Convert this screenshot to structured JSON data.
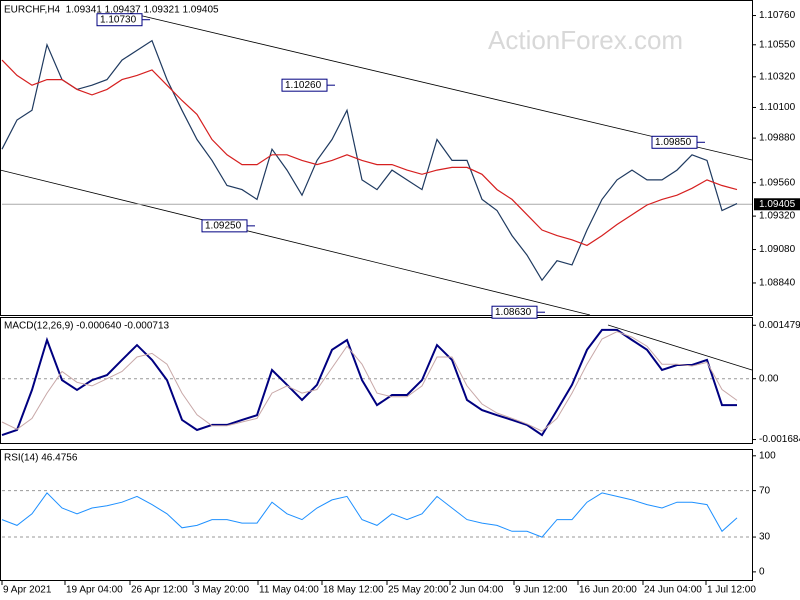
{
  "chart_data": [
    {
      "type": "line",
      "title": "EURCHF,H4  1.09341 1.09437 1.09321 1.09405",
      "watermark": "ActionForex.com",
      "x": [
        0,
        1.5,
        3,
        4.5,
        6,
        7.5,
        9,
        10.5,
        12,
        13.5,
        15,
        16.5,
        18,
        19.5,
        21,
        22.5,
        24,
        25.5,
        27,
        28.5,
        30,
        31.5,
        33,
        34.5,
        36,
        37.5,
        39,
        40.5,
        42,
        43.5,
        45,
        46.5,
        48,
        49.5,
        51,
        52.5,
        54,
        55.5,
        57,
        58.5,
        60,
        61.5,
        63,
        64.5,
        66,
        67.5,
        69,
        70.5,
        72,
        73.5
      ],
      "xlim": [
        0,
        75
      ],
      "ylim": [
        1.0861,
        1.1085
      ],
      "yticks": [
        {
          "value": 1.1076,
          "label": "1.10760"
        },
        {
          "value": 1.1055,
          "label": "1.10550"
        },
        {
          "value": 1.1032,
          "label": "1.10320"
        },
        {
          "value": 1.101,
          "label": "1.10100"
        },
        {
          "value": 1.0988,
          "label": "1.09880"
        },
        {
          "value": 1.0956,
          "label": "1.09560"
        },
        {
          "value": 1.0932,
          "label": "1.09320"
        },
        {
          "value": 1.0908,
          "label": "1.09080"
        },
        {
          "value": 1.0884,
          "label": "1.08840"
        }
      ],
      "last_price": {
        "value": 1.09405,
        "label": "1.09405"
      },
      "annotations": [
        {
          "x": 14.8,
          "value": 1.1073,
          "label": "1.10730"
        },
        {
          "x": 33.3,
          "value": 1.1026,
          "label": "1.10260"
        },
        {
          "x": 25.3,
          "value": 1.0925,
          "label": "1.09250"
        },
        {
          "x": 54.3,
          "value": 1.0863,
          "label": "1.08630"
        },
        {
          "x": 70.3,
          "value": 1.0985,
          "label": "1.09850"
        }
      ],
      "series": [
        {
          "color": "#1f3a60",
          "values": [
            1.098,
            1.1001,
            1.1008,
            1.1055,
            1.103,
            1.1023,
            1.1026,
            1.103,
            1.1044,
            1.1051,
            1.1058,
            1.103,
            1.1008,
            1.0987,
            1.0972,
            1.0954,
            1.0951,
            1.0944,
            1.098,
            1.0965,
            1.0947,
            1.0972,
            1.0987,
            1.1008,
            1.0958,
            1.0951,
            1.0965,
            1.0958,
            1.0951,
            1.0987,
            1.0972,
            1.0972,
            1.0944,
            1.0936,
            1.0918,
            1.0904,
            1.0886,
            1.09,
            1.0897,
            1.0922,
            1.0944,
            1.0958,
            1.0965,
            1.0958,
            1.0958,
            1.0965,
            1.0976,
            1.0972,
            1.0936,
            1.0941
          ]
        },
        {
          "color": "#d62020",
          "values": [
            1.1044,
            1.1033,
            1.1026,
            1.103,
            1.103,
            1.1023,
            1.1019,
            1.1023,
            1.103,
            1.1033,
            1.1037,
            1.1026,
            1.1015,
            1.1005,
            1.0987,
            1.0976,
            1.0969,
            1.0969,
            1.0976,
            1.0976,
            1.0972,
            1.0969,
            1.0972,
            1.0976,
            1.0972,
            1.0969,
            1.0969,
            1.0965,
            1.0962,
            1.0965,
            1.0967,
            1.0967,
            1.0962,
            1.0951,
            1.0944,
            1.0933,
            1.0922,
            1.0918,
            1.0915,
            1.0911,
            1.0918,
            1.0926,
            1.0933,
            1.094,
            1.0944,
            1.0947,
            1.0952,
            1.0958,
            1.0954,
            1.0951
          ]
        }
      ]
    },
    {
      "type": "line",
      "title": "MACD(12,26,9) -0.000640 -0.000713",
      "ylim": [
        -0.00178,
        0.00168
      ],
      "yticks": [
        {
          "value": 0.001479,
          "label": "0.001479"
        },
        {
          "value": 0,
          "label": "0.00"
        },
        {
          "value": -0.001684,
          "label": "-0.001684"
        }
      ],
      "dashed_levels": [
        0
      ],
      "series": [
        {
          "color": "#000080",
          "width": 2,
          "values": [
            -0.00156,
            -0.00142,
            -0.00031,
            0.00107,
            -4e-05,
            -0.00031,
            -4e-05,
            0.0001,
            0.00052,
            0.00093,
            0.00052,
            -4e-05,
            -0.00114,
            -0.00142,
            -0.00128,
            -0.00128,
            -0.00114,
            -0.00101,
            0.00024,
            -0.00017,
            -0.00059,
            -0.00017,
            0.0008,
            0.00107,
            -4e-05,
            -0.00073,
            -0.00045,
            -0.00045,
            -4e-05,
            0.00093,
            0.00052,
            -0.00059,
            -0.00087,
            -0.00101,
            -0.00114,
            -0.00128,
            -0.00156,
            -0.00087,
            -0.00017,
            0.0008,
            0.00135,
            0.00135,
            0.00107,
            0.0008,
            0.00024,
            0.00038,
            0.00038,
            0.00052,
            -0.00073,
            -0.00073
          ]
        },
        {
          "color": "#c8a8a8",
          "width": 1,
          "values": [
            -0.0012,
            -0.0014,
            -0.0011,
            -0.0004,
            0.0002,
            -0.0001,
            -0.0002,
            0.0,
            0.0002,
            0.0006,
            0.0007,
            0.0004,
            -0.0004,
            -0.001,
            -0.0013,
            -0.0013,
            -0.0012,
            -0.0011,
            -0.0004,
            -0.0002,
            -0.0004,
            -0.0003,
            0.0003,
            0.0009,
            0.0004,
            -0.0004,
            -0.0005,
            -0.0005,
            -0.0002,
            0.0006,
            0.0006,
            -0.0002,
            -0.0007,
            -0.00095,
            -0.0011,
            -0.00125,
            -0.00145,
            -0.0011,
            -0.0004,
            0.0004,
            0.0011,
            0.0013,
            0.00115,
            0.0009,
            0.0004,
            0.0004,
            0.00035,
            0.00045,
            -0.0003,
            -0.0006
          ]
        }
      ]
    },
    {
      "type": "line",
      "title": "RSI(14) 46.4756",
      "ylim": [
        -7,
        105
      ],
      "yticks": [
        100,
        70,
        30,
        0
      ],
      "dashed_levels": [
        70,
        30
      ],
      "xticks": [
        {
          "value": 0,
          "label": "9 Apr 2021"
        },
        {
          "value": 6.3,
          "label": "19 Apr 04:00"
        },
        {
          "value": 12.8,
          "label": "26 Apr 12:00"
        },
        {
          "value": 19.1,
          "label": "3 May 20:00"
        },
        {
          "value": 25.6,
          "label": "11 May 04:00"
        },
        {
          "value": 32,
          "label": "18 May 12:00"
        },
        {
          "value": 38.5,
          "label": "25 May 20:00"
        },
        {
          "value": 44.8,
          "label": "2 Jun 04:00"
        },
        {
          "value": 51.2,
          "label": "9 Jun 12:00"
        },
        {
          "value": 57.6,
          "label": "16 Jun 20:00"
        },
        {
          "value": 64.1,
          "label": "24 Jun 04:00"
        },
        {
          "value": 70.4,
          "label": "1 Jul 12:00"
        }
      ],
      "series": [
        {
          "color": "#1e90ff",
          "width": 1,
          "values": [
            45,
            40,
            50,
            68,
            55,
            50,
            55,
            57,
            60,
            65,
            58,
            50,
            38,
            40,
            45,
            45,
            42,
            42,
            60,
            50,
            45,
            55,
            62,
            65,
            45,
            40,
            50,
            45,
            50,
            65,
            55,
            45,
            42,
            40,
            35,
            35,
            30,
            45,
            45,
            60,
            68,
            65,
            62,
            58,
            55,
            60,
            60,
            58,
            35,
            46.5
          ]
        }
      ]
    }
  ]
}
